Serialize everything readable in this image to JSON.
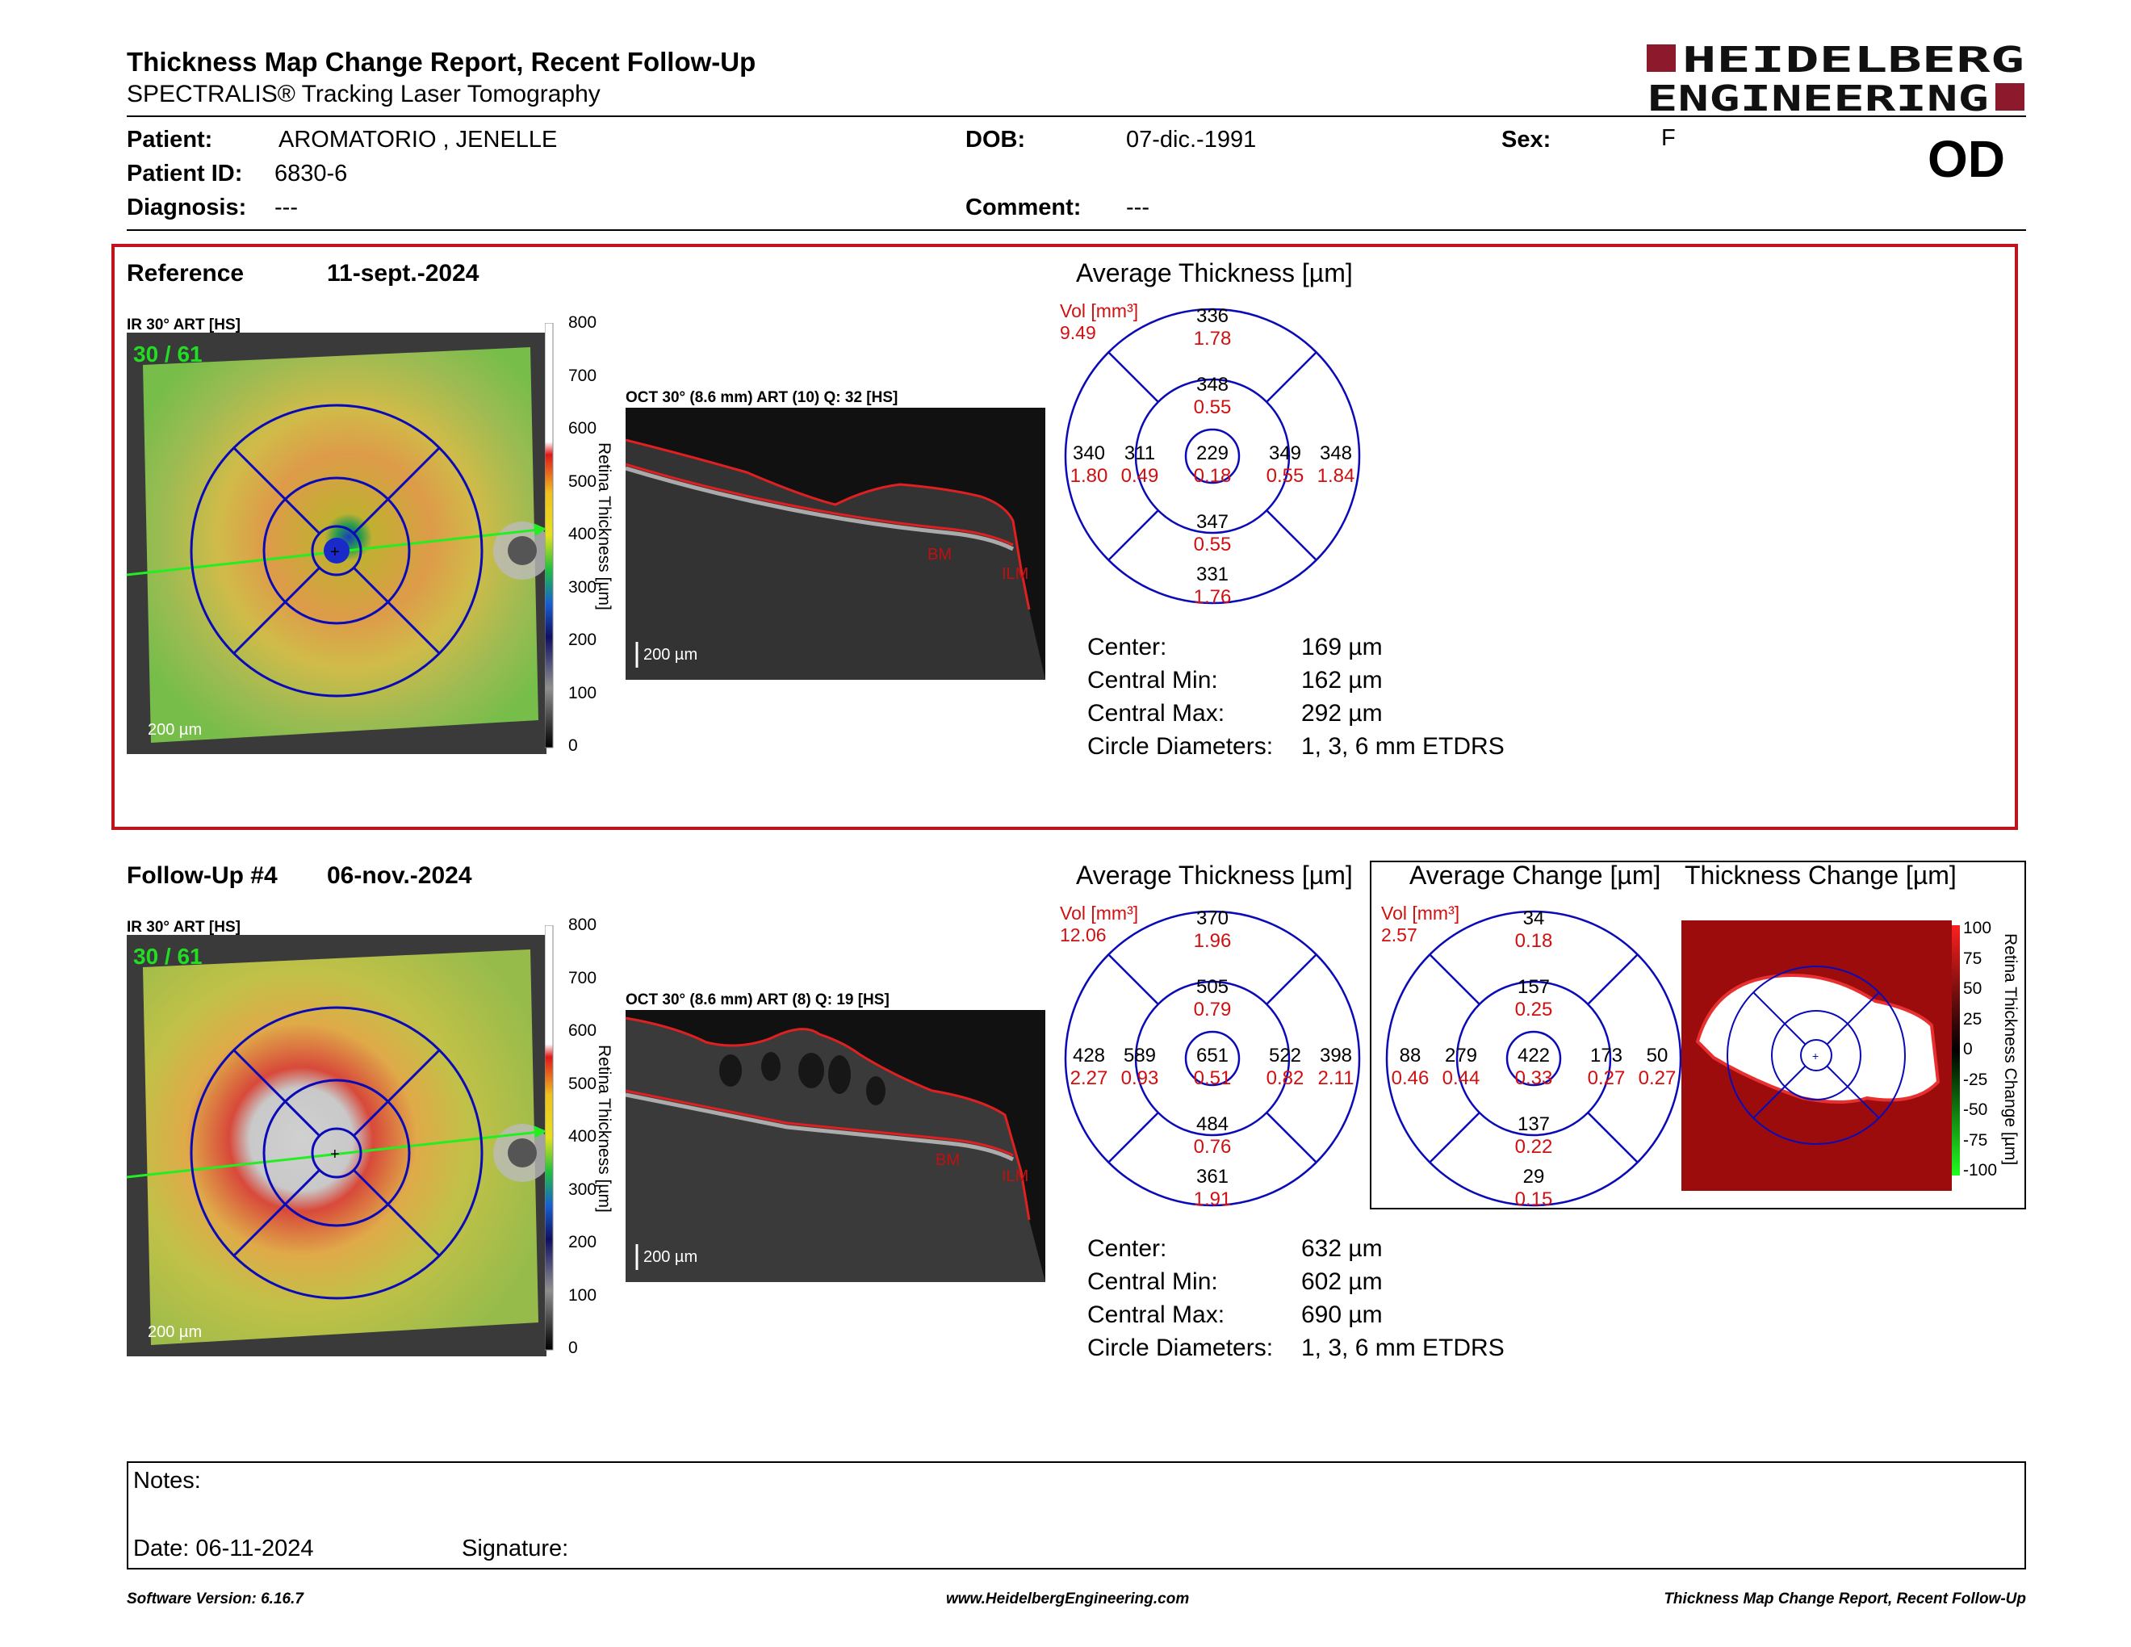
{
  "header": {
    "title": "Thickness Map Change Report, Recent Follow-Up",
    "subtitle": "SPECTRALIS® Tracking Laser Tomography",
    "logo_line1": "HEIDELBERG",
    "logo_line2": "ENGINEERING",
    "eye": "OD"
  },
  "patient": {
    "patient_label": "Patient:",
    "patient_value": "AROMATORIO , JENELLE",
    "id_label": "Patient ID:",
    "id_value": "6830-6",
    "diagnosis_label": "Diagnosis:",
    "diagnosis_value": "---",
    "dob_label": "DOB:",
    "dob_value": "07-dic.-1991",
    "comment_label": "Comment:",
    "comment_value": "---",
    "sex_label": "Sex:",
    "sex_value": "F"
  },
  "reference": {
    "label": "Reference",
    "date": "11-sept.-2024",
    "ir_label": "IR 30° ART [HS]",
    "art_count": "30 / 61",
    "scale_bar": "200 µm",
    "oct_label": "OCT 30° (8.6 mm) ART (10) Q: 32 [HS]",
    "oct_scale": "200 µm",
    "layer_bm": "BM",
    "layer_ilm": "ILM",
    "colorbar_ticks": [
      "800",
      "700",
      "600",
      "500",
      "400",
      "300",
      "200",
      "100",
      "0"
    ],
    "colorbar_title": "Retina Thickness [µm]",
    "avg_title": "Average Thickness [µm]",
    "vol_label": "Vol [mm³]",
    "vol_value": "9.49",
    "sectors": {
      "outer_top": [
        "336",
        "1.78"
      ],
      "inner_top": [
        "348",
        "0.55"
      ],
      "outer_left": [
        "340",
        "1.80"
      ],
      "inner_left": [
        "311",
        "0.49"
      ],
      "center": [
        "229",
        "0.18"
      ],
      "inner_right": [
        "349",
        "0.55"
      ],
      "outer_right": [
        "348",
        "1.84"
      ],
      "inner_bottom": [
        "347",
        "0.55"
      ],
      "outer_bottom": [
        "331",
        "1.76"
      ]
    },
    "stats": [
      {
        "k": "Center:",
        "v": "169 µm"
      },
      {
        "k": "Central Min:",
        "v": "162 µm"
      },
      {
        "k": "Central Max:",
        "v": "292 µm"
      },
      {
        "k": "Circle Diameters:",
        "v": "1, 3, 6 mm ETDRS"
      }
    ]
  },
  "followup": {
    "label": "Follow-Up #4",
    "date": "06-nov.-2024",
    "ir_label": "IR 30° ART [HS]",
    "art_count": "30 / 61",
    "scale_bar": "200 µm",
    "oct_label": "OCT 30° (8.6 mm) ART (8) Q: 19 [HS]",
    "oct_scale": "200 µm",
    "layer_bm": "BM",
    "layer_ilm": "ILM",
    "colorbar_ticks": [
      "800",
      "700",
      "600",
      "500",
      "400",
      "300",
      "200",
      "100",
      "0"
    ],
    "colorbar_title": "Retina Thickness [µm]",
    "avg_title": "Average Thickness [µm]",
    "vol_label": "Vol [mm³]",
    "vol_value": "12.06",
    "sectors": {
      "outer_top": [
        "370",
        "1.96"
      ],
      "inner_top": [
        "505",
        "0.79"
      ],
      "outer_left": [
        "428",
        "2.27"
      ],
      "inner_left": [
        "589",
        "0.93"
      ],
      "center": [
        "651",
        "0.51"
      ],
      "inner_right": [
        "522",
        "0.82"
      ],
      "outer_right": [
        "398",
        "2.11"
      ],
      "inner_bottom": [
        "484",
        "0.76"
      ],
      "outer_bottom": [
        "361",
        "1.91"
      ]
    },
    "stats": [
      {
        "k": "Center:",
        "v": "632 µm"
      },
      {
        "k": "Central Min:",
        "v": "602 µm"
      },
      {
        "k": "Central Max:",
        "v": "690 µm"
      },
      {
        "k": "Circle Diameters:",
        "v": "1, 3, 6 mm ETDRS"
      }
    ],
    "change_title": "Average Change [µm]",
    "change_vol_label": "Vol [mm³]",
    "change_vol_value": "2.57",
    "change_sectors": {
      "outer_top": [
        "34",
        "0.18"
      ],
      "inner_top": [
        "157",
        "0.25"
      ],
      "outer_left": [
        "88",
        "0.46"
      ],
      "inner_left": [
        "279",
        "0.44"
      ],
      "center": [
        "422",
        "0.33"
      ],
      "inner_right": [
        "173",
        "0.27"
      ],
      "outer_right": [
        "50",
        "0.27"
      ],
      "inner_bottom": [
        "137",
        "0.22"
      ],
      "outer_bottom": [
        "29",
        "0.15"
      ]
    },
    "thickchange_title": "Thickness Change [µm]",
    "thickchange_ticks": [
      "100",
      "75",
      "50",
      "25",
      "0",
      "-25",
      "-50",
      "-75",
      "-100"
    ],
    "thickchange_bar_title": "Retina Thickness Change [µm]"
  },
  "notes": {
    "notes_label": "Notes:",
    "date_label": "Date: 06-11-2024",
    "signature_label": "Signature:"
  },
  "footer": {
    "version": "Software Version: 6.16.7",
    "url": "www.HeidelbergEngineering.com",
    "report": "Thickness Map Change Report, Recent Follow-Up"
  },
  "colors": {
    "accent_red": "#c0141c",
    "grid_blue": "#0000b4",
    "value_red": "#d01010",
    "logo_red": "#8c1a2c"
  }
}
